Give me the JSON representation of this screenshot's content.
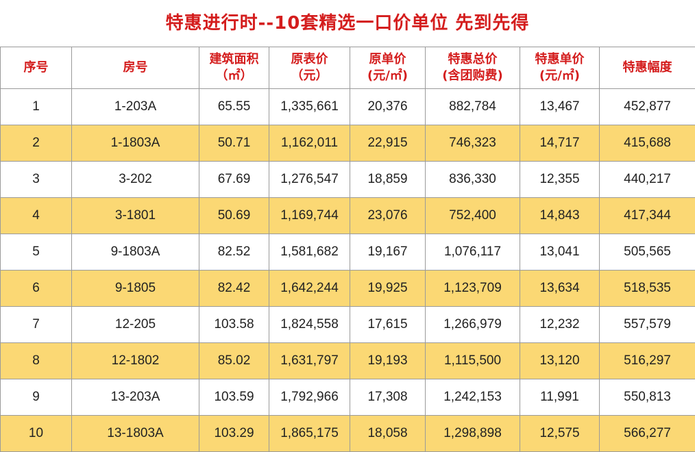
{
  "title": "特惠进行时--10套精选一口价单位 先到先得",
  "colors": {
    "title": "#d41d1d",
    "highlight_row": "#fbd874"
  },
  "headers": [
    {
      "line1": "序号",
      "line2": ""
    },
    {
      "line1": "房号",
      "line2": ""
    },
    {
      "line1": "建筑面积",
      "line2": "（㎡）"
    },
    {
      "line1": "原表价",
      "line2": "（元）"
    },
    {
      "line1": "原单价",
      "line2": "(元/㎡)"
    },
    {
      "line1": "特惠总价",
      "line2": "(含团购费)"
    },
    {
      "line1": "特惠单价",
      "line2": "(元/㎡)"
    },
    {
      "line1": "特惠幅度",
      "line2": ""
    }
  ],
  "rows": [
    [
      "1",
      "1-203A",
      "65.55",
      "1,335,661",
      "20,376",
      "882,784",
      "13,467",
      "452,877"
    ],
    [
      "2",
      "1-1803A",
      "50.71",
      "1,162,011",
      "22,915",
      "746,323",
      "14,717",
      "415,688"
    ],
    [
      "3",
      "3-202",
      "67.69",
      "1,276,547",
      "18,859",
      "836,330",
      "12,355",
      "440,217"
    ],
    [
      "4",
      "3-1801",
      "50.69",
      "1,169,744",
      "23,076",
      "752,400",
      "14,843",
      "417,344"
    ],
    [
      "5",
      "9-1803A",
      "82.52",
      "1,581,682",
      "19,167",
      "1,076,117",
      "13,041",
      "505,565"
    ],
    [
      "6",
      "9-1805",
      "82.42",
      "1,642,244",
      "19,925",
      "1,123,709",
      "13,634",
      "518,535"
    ],
    [
      "7",
      "12-205",
      "103.58",
      "1,824,558",
      "17,615",
      "1,266,979",
      "12,232",
      "557,579"
    ],
    [
      "8",
      "12-1802",
      "85.02",
      "1,631,797",
      "19,193",
      "1,115,500",
      "13,120",
      "516,297"
    ],
    [
      "9",
      "13-203A",
      "103.59",
      "1,792,966",
      "17,308",
      "1,242,153",
      "11,991",
      "550,813"
    ],
    [
      "10",
      "13-1803A",
      "103.29",
      "1,865,175",
      "18,058",
      "1,298,898",
      "12,575",
      "566,277"
    ]
  ]
}
